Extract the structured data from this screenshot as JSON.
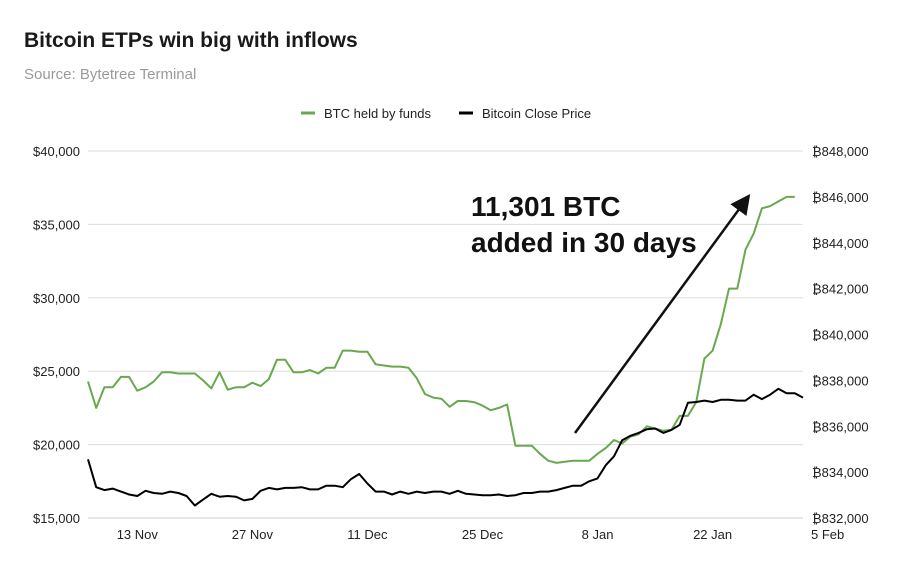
{
  "title": "Bitcoin ETPs win big with inflows",
  "subtitle": "Source: Bytetree Terminal",
  "chart_data": {
    "type": "line",
    "grid": true,
    "legend_position": "top-center",
    "x_ticks": [
      "13 Nov",
      "27 Nov",
      "11 Dec",
      "25 Dec",
      "8 Jan",
      "22 Jan",
      "5 Feb"
    ],
    "y_left": {
      "ticks": [
        "$15,000",
        "$20,000",
        "$25,000",
        "$30,000",
        "$35,000",
        "$40,000"
      ],
      "range": [
        15000,
        40000
      ]
    },
    "y_right": {
      "ticks": [
        "₿832,000",
        "₿834,000",
        "₿836,000",
        "₿838,000",
        "₿840,000",
        "₿842,000",
        "₿844,000",
        "₿846,000",
        "₿848,000"
      ],
      "range": [
        832000,
        848000
      ]
    },
    "series": [
      {
        "name": "BTC held by funds",
        "axis": "right",
        "color": "#6aa84f",
        "x_start": "2023-11-07",
        "values": [
          837950,
          836800,
          837700,
          837700,
          838150,
          838150,
          837550,
          837700,
          837950,
          838350,
          838350,
          838300,
          838300,
          838300,
          838000,
          837650,
          838350,
          837600,
          837700,
          837700,
          837900,
          837750,
          838050,
          838900,
          838900,
          838350,
          838350,
          838450,
          838300,
          838550,
          838550,
          839300,
          839300,
          839250,
          839250,
          838700,
          838650,
          838600,
          838600,
          838550,
          838100,
          837400,
          837250,
          837200,
          836850,
          837100,
          837100,
          837050,
          836900,
          836700,
          836800,
          836950,
          835150,
          835150,
          835150,
          834800,
          834500,
          834400,
          834450,
          834500,
          834500,
          834500,
          834800,
          835050,
          835400,
          835250,
          835550,
          835650,
          836000,
          835900,
          835800,
          835850,
          836450,
          836450,
          837050,
          838950,
          839300,
          840450,
          842000,
          842000,
          843700,
          844400,
          845500,
          845600,
          845800,
          846000,
          846000
        ]
      },
      {
        "name": "Bitcoin Close Price",
        "axis": "left",
        "color": "#000000",
        "x_start": "2023-11-07",
        "values": [
          19000,
          17100,
          16900,
          17000,
          16800,
          16600,
          16500,
          16850,
          16700,
          16650,
          16800,
          16700,
          16500,
          15850,
          16250,
          16650,
          16450,
          16500,
          16450,
          16200,
          16300,
          16850,
          17050,
          16950,
          17050,
          17050,
          17100,
          16950,
          16950,
          17200,
          17200,
          17100,
          17650,
          18000,
          17350,
          16800,
          16800,
          16600,
          16800,
          16650,
          16800,
          16700,
          16800,
          16800,
          16650,
          16850,
          16650,
          16600,
          16550,
          16550,
          16600,
          16500,
          16550,
          16700,
          16700,
          16800,
          16800,
          16900,
          17050,
          17200,
          17200,
          17500,
          17700,
          18600,
          19200,
          20300,
          20600,
          20800,
          21050,
          21100,
          20800,
          21000,
          21350,
          22850,
          22900,
          23000,
          22900,
          23050,
          23050,
          23000,
          23000,
          23400,
          23100,
          23400,
          23800,
          23500,
          23500,
          23200
        ]
      }
    ],
    "annotation": {
      "lines": [
        "11,301 BTC",
        "added in 30 days"
      ],
      "arrow": true
    }
  }
}
